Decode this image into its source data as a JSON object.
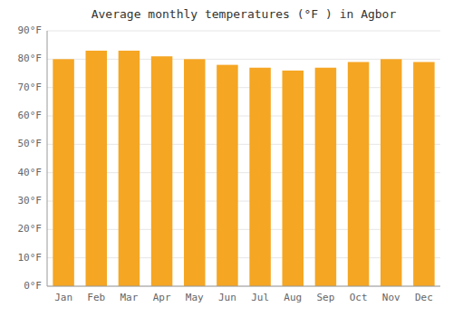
{
  "chart_data": {
    "type": "bar",
    "title": "Average monthly temperatures (°F ) in Agbor",
    "categories": [
      "Jan",
      "Feb",
      "Mar",
      "Apr",
      "May",
      "Jun",
      "Jul",
      "Aug",
      "Sep",
      "Oct",
      "Nov",
      "Dec"
    ],
    "values": [
      80,
      83,
      83,
      81,
      80,
      78,
      77,
      76,
      77,
      79,
      80,
      79
    ],
    "color": "#F5A623",
    "ylim": [
      0,
      90
    ],
    "yticks": [
      {
        "value": 0,
        "label": "0°F"
      },
      {
        "value": 10,
        "label": "10°F"
      },
      {
        "value": 20,
        "label": "20°F"
      },
      {
        "value": 30,
        "label": "30°F"
      },
      {
        "value": 40,
        "label": "40°F"
      },
      {
        "value": 50,
        "label": "50°F"
      },
      {
        "value": 60,
        "label": "60°F"
      },
      {
        "value": 70,
        "label": "70°F"
      },
      {
        "value": 80,
        "label": "80°F"
      },
      {
        "value": 90,
        "label": "90°F"
      }
    ],
    "grid": true
  }
}
